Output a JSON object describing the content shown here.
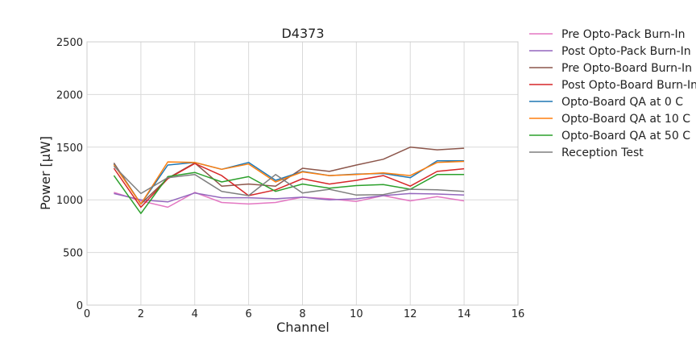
{
  "chart_data": {
    "type": "line",
    "title": "D4373",
    "xlabel": "Channel",
    "ylabel": "Power [μW]",
    "xlim": [
      0,
      16
    ],
    "ylim": [
      0,
      2500
    ],
    "x_ticks": [
      0,
      2,
      4,
      6,
      8,
      10,
      12,
      14,
      16
    ],
    "y_ticks": [
      0,
      500,
      1000,
      1500,
      2000,
      2500
    ],
    "grid": true,
    "legend_placement": "outside-right",
    "x": [
      1,
      2,
      3,
      4,
      5,
      6,
      7,
      8,
      9,
      10,
      11,
      12,
      13,
      14
    ],
    "series": [
      {
        "name": "Pre Opto-Pack Burn-In",
        "color": "#e377c2",
        "values": [
          1070,
          990,
          930,
          1070,
          975,
          960,
          975,
          1025,
          1010,
          985,
          1040,
          990,
          1030,
          990
        ]
      },
      {
        "name": "Post Opto-Pack Burn-In",
        "color": "#9467bd",
        "values": [
          1060,
          1000,
          980,
          1065,
          1020,
          1020,
          1010,
          1025,
          1000,
          1010,
          1040,
          1060,
          1055,
          1045
        ]
      },
      {
        "name": "Pre Opto-Board Burn-In",
        "color": "#8c564b",
        "values": [
          1350,
          960,
          1205,
          1350,
          1130,
          1150,
          1130,
          1300,
          1270,
          1330,
          1385,
          1500,
          1475,
          1490
        ]
      },
      {
        "name": "Post Opto-Board Burn-In",
        "color": "#d62728",
        "values": [
          1300,
          930,
          1200,
          1345,
          1230,
          1040,
          1095,
          1200,
          1150,
          1185,
          1230,
          1130,
          1270,
          1295
        ]
      },
      {
        "name": "Opto-Board QA at 0 C",
        "color": "#1f77b4",
        "values": [
          1340,
          960,
          1330,
          1355,
          1290,
          1355,
          1185,
          1270,
          1230,
          1245,
          1250,
          1210,
          1370,
          1370
        ]
      },
      {
        "name": "Opto-Board QA at 10 C",
        "color": "#ff7f0e",
        "values": [
          1335,
          960,
          1360,
          1355,
          1290,
          1340,
          1170,
          1265,
          1230,
          1240,
          1255,
          1230,
          1355,
          1365
        ]
      },
      {
        "name": "Opto-Board QA at 50 C",
        "color": "#2ca02c",
        "values": [
          1230,
          870,
          1220,
          1260,
          1170,
          1220,
          1080,
          1150,
          1110,
          1135,
          1145,
          1100,
          1240,
          1240
        ]
      },
      {
        "name": "Reception Test",
        "color": "#7f7f7f",
        "values": [
          1320,
          1060,
          1210,
          1240,
          1080,
          1040,
          1240,
          1065,
          1100,
          1045,
          1050,
          1100,
          1095,
          1080
        ]
      }
    ]
  }
}
